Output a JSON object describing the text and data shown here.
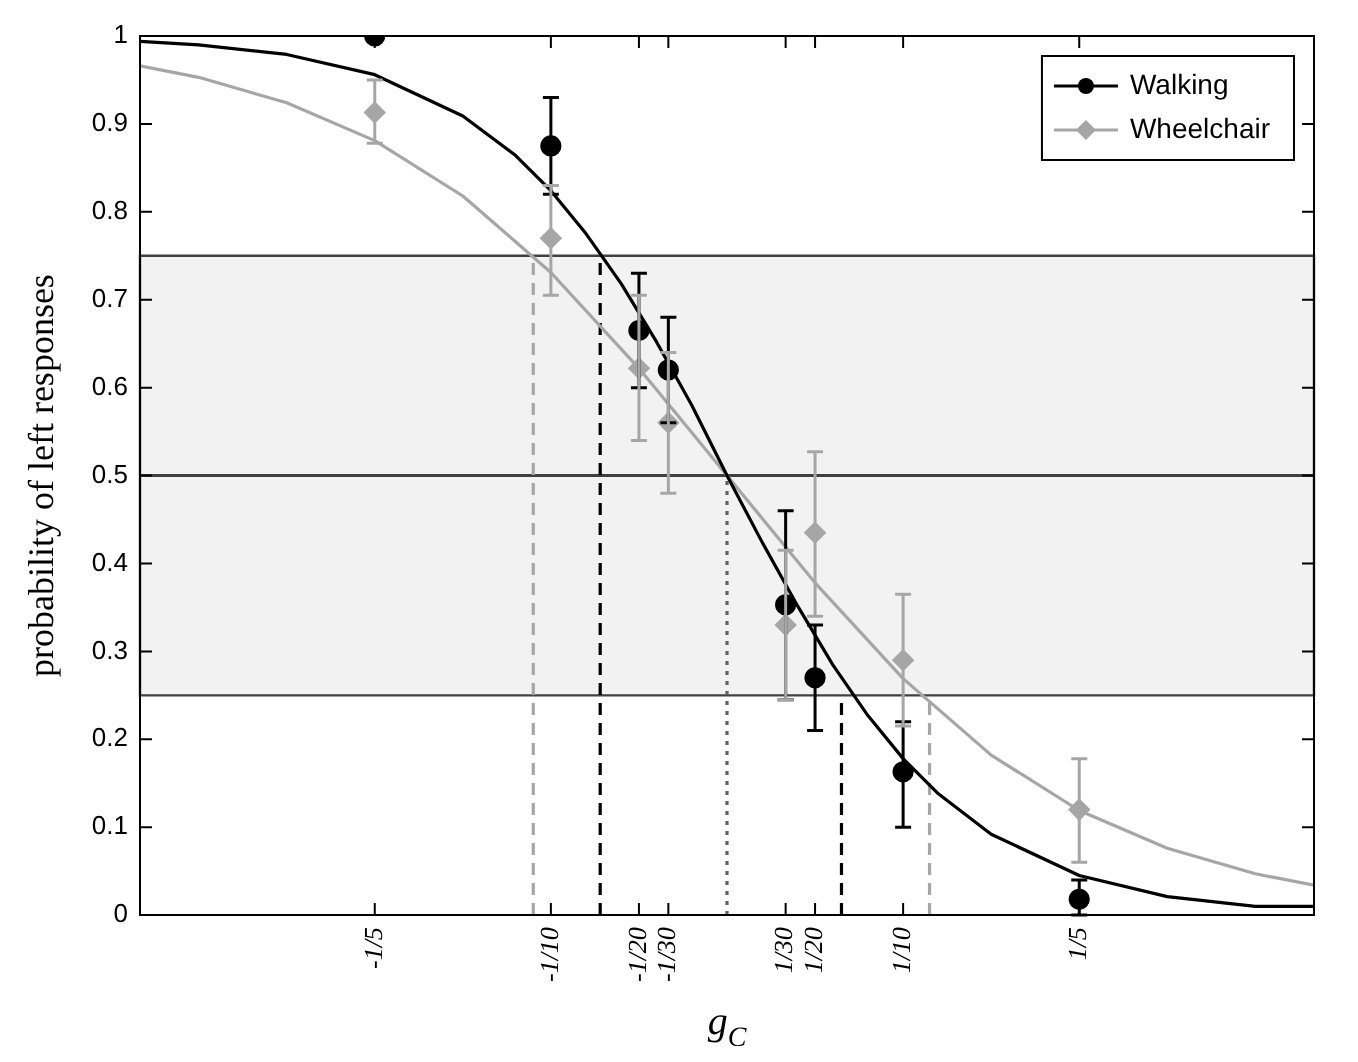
{
  "chart_data": {
    "type": "scatter",
    "xlabel": "g$_{C}$",
    "ylabel": "probability of left responses",
    "xlim": [
      -0.3333,
      0.3333
    ],
    "xticks": [
      {
        "value": -0.2,
        "label": "-1/5"
      },
      {
        "value": -0.1,
        "label": "-1/10"
      },
      {
        "value": -0.05,
        "label": "-1/20"
      },
      {
        "value": -0.0333,
        "label": "-1/30"
      },
      {
        "value": 0.0333,
        "label": "1/30"
      },
      {
        "value": 0.05,
        "label": "1/20"
      },
      {
        "value": 0.1,
        "label": "1/10"
      },
      {
        "value": 0.2,
        "label": "1/5"
      }
    ],
    "ylim": [
      0,
      1
    ],
    "yticks": [
      0,
      0.1,
      0.2,
      0.3,
      0.4,
      0.5,
      0.6,
      0.7,
      0.8,
      0.9,
      1
    ],
    "grid": false,
    "legend": "top right",
    "bands": [
      {
        "axis": "y",
        "from": 0.25,
        "to": 0.75,
        "color": "#f2f2f2"
      }
    ],
    "ref_lines": [
      {
        "axis": "y",
        "value": 0.5,
        "color": "#404040"
      }
    ],
    "series": [
      {
        "type": "line",
        "color": "#000000",
        "marker": "none",
        "line_style": "solid",
        "x": [
          -0.3333,
          -0.3,
          -0.25,
          -0.2,
          -0.15,
          -0.12,
          -0.1,
          -0.08,
          -0.06,
          -0.04,
          -0.02,
          0,
          0.02,
          0.04,
          0.06,
          0.08,
          0.1,
          0.12,
          0.15,
          0.2,
          0.25,
          0.3,
          0.3333
        ],
        "values": [
          0.994,
          0.99,
          0.979,
          0.956,
          0.909,
          0.864,
          0.824,
          0.775,
          0.718,
          0.652,
          0.58,
          0.5,
          0.424,
          0.352,
          0.285,
          0.227,
          0.178,
          0.138,
          0.092,
          0.045,
          0.021,
          0.01,
          0.01
        ]
      },
      {
        "type": "line",
        "color": "#a6a6a6",
        "marker": "none",
        "line_style": "solid",
        "x": [
          -0.3333,
          -0.3,
          -0.25,
          -0.2,
          -0.15,
          -0.1,
          -0.05,
          0,
          0.05,
          0.1,
          0.15,
          0.2,
          0.25,
          0.3,
          0.3333
        ],
        "values": [
          0.966,
          0.953,
          0.924,
          0.881,
          0.818,
          0.731,
          0.622,
          0.5,
          0.378,
          0.269,
          0.182,
          0.119,
          0.076,
          0.047,
          0.034
        ]
      },
      {
        "type": "line",
        "color": "#000000",
        "marker": "none",
        "line_style": "dashed",
        "x": [
          -0.072,
          -0.072
        ],
        "values": [
          0,
          0.75
        ]
      },
      {
        "type": "line",
        "color": "#000000",
        "marker": "none",
        "line_style": "dashed",
        "x": [
          0.065,
          0.065
        ],
        "values": [
          0,
          0.25
        ]
      },
      {
        "type": "line",
        "color": "#a6a6a6",
        "marker": "none",
        "line_style": "dashed",
        "x": [
          -0.11,
          -0.11
        ],
        "values": [
          0,
          0.75
        ]
      },
      {
        "type": "line",
        "color": "#a6a6a6",
        "marker": "none",
        "line_style": "dashed",
        "x": [
          0.115,
          0.115
        ],
        "values": [
          0,
          0.25
        ]
      },
      {
        "type": "line",
        "color": "#606060",
        "marker": "none",
        "line_style": "dotted",
        "x": [
          0,
          0
        ],
        "values": [
          0,
          0.5
        ]
      },
      {
        "name": "Walking",
        "type": "scatter",
        "color": "#000000",
        "marker": "circle",
        "x": [
          -0.2,
          -0.1,
          -0.05,
          -0.0333,
          0.0333,
          0.05,
          0.1,
          0.2
        ],
        "values": [
          1.0,
          0.875,
          0.665,
          0.62,
          0.353,
          0.27,
          0.163,
          0.018
        ],
        "errors": [
          null,
          [
            0.82,
            0.93
          ],
          [
            0.6,
            0.73
          ],
          [
            0.56,
            0.68
          ],
          [
            0.245,
            0.46
          ],
          [
            0.21,
            0.33
          ],
          [
            0.1,
            0.22
          ],
          [
            0,
            0.04
          ]
        ]
      },
      {
        "name": "Wheelchair",
        "type": "scatter",
        "color": "#a6a6a6",
        "marker": "diamond",
        "x": [
          -0.2,
          -0.1,
          -0.05,
          -0.0333,
          0.0333,
          0.05,
          0.1,
          0.2
        ],
        "values": [
          0.913,
          0.77,
          0.622,
          0.56,
          0.33,
          0.435,
          0.29,
          0.12
        ],
        "errors": [
          [
            0.878,
            0.95
          ],
          [
            0.705,
            0.83
          ],
          [
            0.54,
            0.705
          ],
          [
            0.48,
            0.64
          ],
          [
            0.245,
            0.415
          ],
          [
            0.34,
            0.527
          ],
          [
            0.215,
            0.365
          ],
          [
            0.06,
            0.178
          ]
        ]
      }
    ]
  }
}
